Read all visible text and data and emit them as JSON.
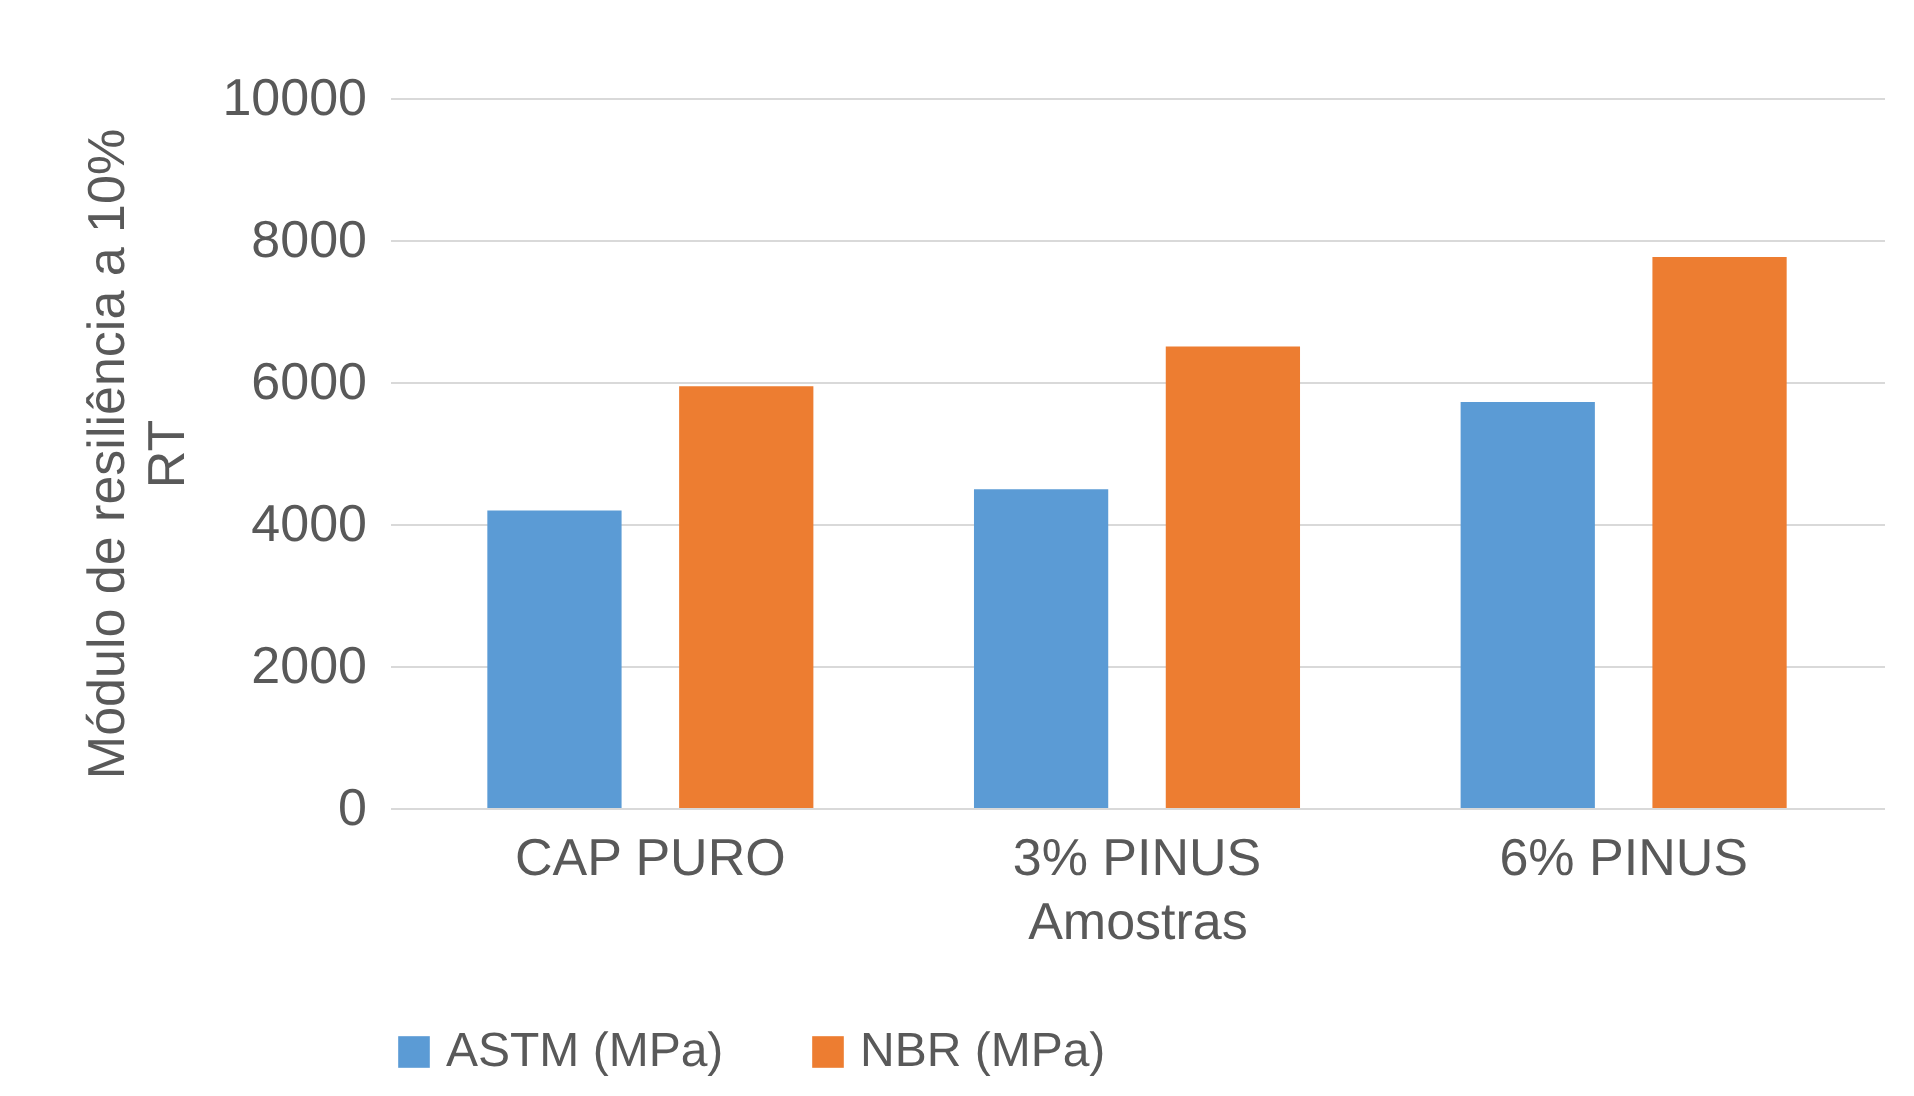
{
  "chart_data": {
    "type": "bar",
    "xlabel": "Amostras",
    "ylabel": "Módulo de resiliência a 10% RT",
    "categories": [
      "CAP PURO",
      "3% PINUS",
      "6% PINUS"
    ],
    "series": [
      {
        "name": "ASTM (MPa)",
        "color": "#5b9bd5",
        "values": [
          4190,
          4490,
          5720
        ]
      },
      {
        "name": "NBR (MPa)",
        "color": "#ed7d31",
        "values": [
          5940,
          6500,
          7760
        ]
      }
    ],
    "ylim": [
      0,
      10000
    ],
    "yticks": [
      0,
      2000,
      4000,
      6000,
      8000,
      10000
    ],
    "grid": "y",
    "legend": "bottom"
  }
}
